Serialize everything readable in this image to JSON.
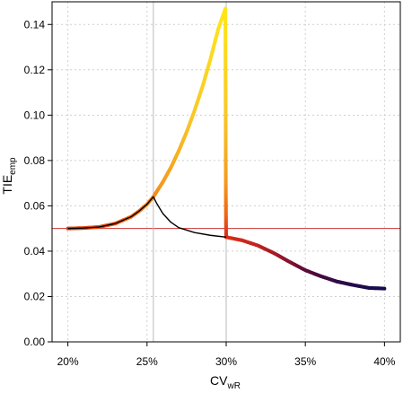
{
  "chart_data": {
    "type": "line",
    "title": "",
    "xlabel": {
      "main": "CV",
      "sub": "wR"
    },
    "ylabel": {
      "main": "TIE",
      "sub": "emp"
    },
    "xlim": [
      0.19,
      0.41
    ],
    "ylim": [
      0.0,
      0.15
    ],
    "x_ticks": [
      0.2,
      0.25,
      0.3,
      0.35,
      0.4
    ],
    "x_tick_labels": [
      "20%",
      "25%",
      "30%",
      "35%",
      "40%"
    ],
    "y_ticks": [
      0.0,
      0.02,
      0.04,
      0.06,
      0.08,
      0.1,
      0.12,
      0.14
    ],
    "y_tick_labels": [
      "0.00",
      "0.02",
      "0.04",
      "0.06",
      "0.08",
      "0.10",
      "0.12",
      "0.14"
    ],
    "grid": true,
    "reference_lines": [
      {
        "orientation": "horizontal",
        "y": 0.05,
        "color": "#cc3333"
      },
      {
        "orientation": "vertical",
        "x": 0.254,
        "color": "#bbbbbb"
      },
      {
        "orientation": "vertical",
        "x": 0.3,
        "color": "#bbbbbb"
      }
    ],
    "series": [
      {
        "style": "thin",
        "color": "#000000",
        "x": [
          0.2,
          0.21,
          0.22,
          0.23,
          0.24,
          0.245,
          0.25,
          0.254,
          0.256,
          0.26,
          0.265,
          0.27,
          0.28,
          0.29,
          0.3
        ],
        "y": [
          0.05,
          0.0502,
          0.0507,
          0.0522,
          0.0552,
          0.0577,
          0.0607,
          0.064,
          0.0612,
          0.0566,
          0.0528,
          0.0504,
          0.0482,
          0.047,
          0.0462
        ]
      },
      {
        "style": "thick-gradient",
        "x": [
          0.2,
          0.21,
          0.22,
          0.23,
          0.24,
          0.245,
          0.25,
          0.254,
          0.26,
          0.265,
          0.27,
          0.275,
          0.28,
          0.285,
          0.29,
          0.295,
          0.2995,
          0.2996,
          0.2997,
          0.2998,
          0.2999,
          0.3,
          0.31,
          0.32,
          0.33,
          0.34,
          0.35,
          0.36,
          0.37,
          0.38,
          0.39,
          0.4
        ],
        "y": [
          0.05,
          0.0502,
          0.0507,
          0.0522,
          0.0552,
          0.0577,
          0.0607,
          0.064,
          0.0705,
          0.0768,
          0.0842,
          0.0925,
          0.102,
          0.1125,
          0.1245,
          0.138,
          0.147,
          0.12,
          0.09,
          0.065,
          0.052,
          0.0462,
          0.0448,
          0.0425,
          0.0392,
          0.0353,
          0.0316,
          0.0289,
          0.0266,
          0.0251,
          0.0238,
          0.0235
        ]
      }
    ]
  }
}
